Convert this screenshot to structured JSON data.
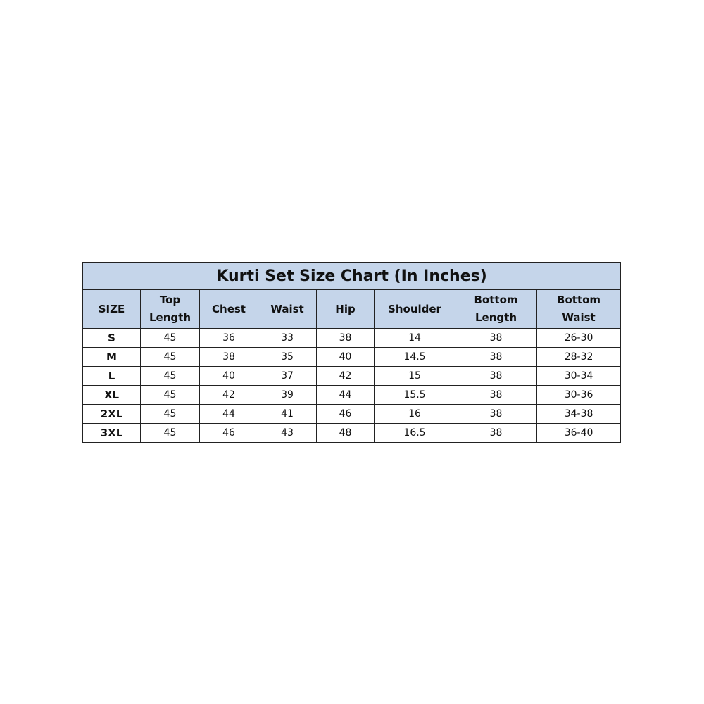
{
  "title": "Kurti Set Size Chart (In Inches)",
  "headers": [
    "SIZE",
    "Top Length",
    "Chest",
    "Waist",
    "Hip",
    "Shoulder",
    "Bottom Length",
    "Bottom Waist"
  ],
  "rows": [
    [
      "S",
      "45",
      "36",
      "33",
      "38",
      "14",
      "38",
      "26-30"
    ],
    [
      "M",
      "45",
      "38",
      "35",
      "40",
      "14.5",
      "38",
      "28-32"
    ],
    [
      "L",
      "45",
      "40",
      "37",
      "42",
      "15",
      "38",
      "30-34"
    ],
    [
      "XL",
      "45",
      "42",
      "39",
      "44",
      "15.5",
      "38",
      "30-36"
    ],
    [
      "2XL",
      "45",
      "44",
      "41",
      "46",
      "16",
      "38",
      "34-38"
    ],
    [
      "3XL",
      "45",
      "46",
      "43",
      "48",
      "16.5",
      "38",
      "36-40"
    ]
  ],
  "colors": {
    "header_bg": "#c5d5ea",
    "border": "#222222"
  }
}
